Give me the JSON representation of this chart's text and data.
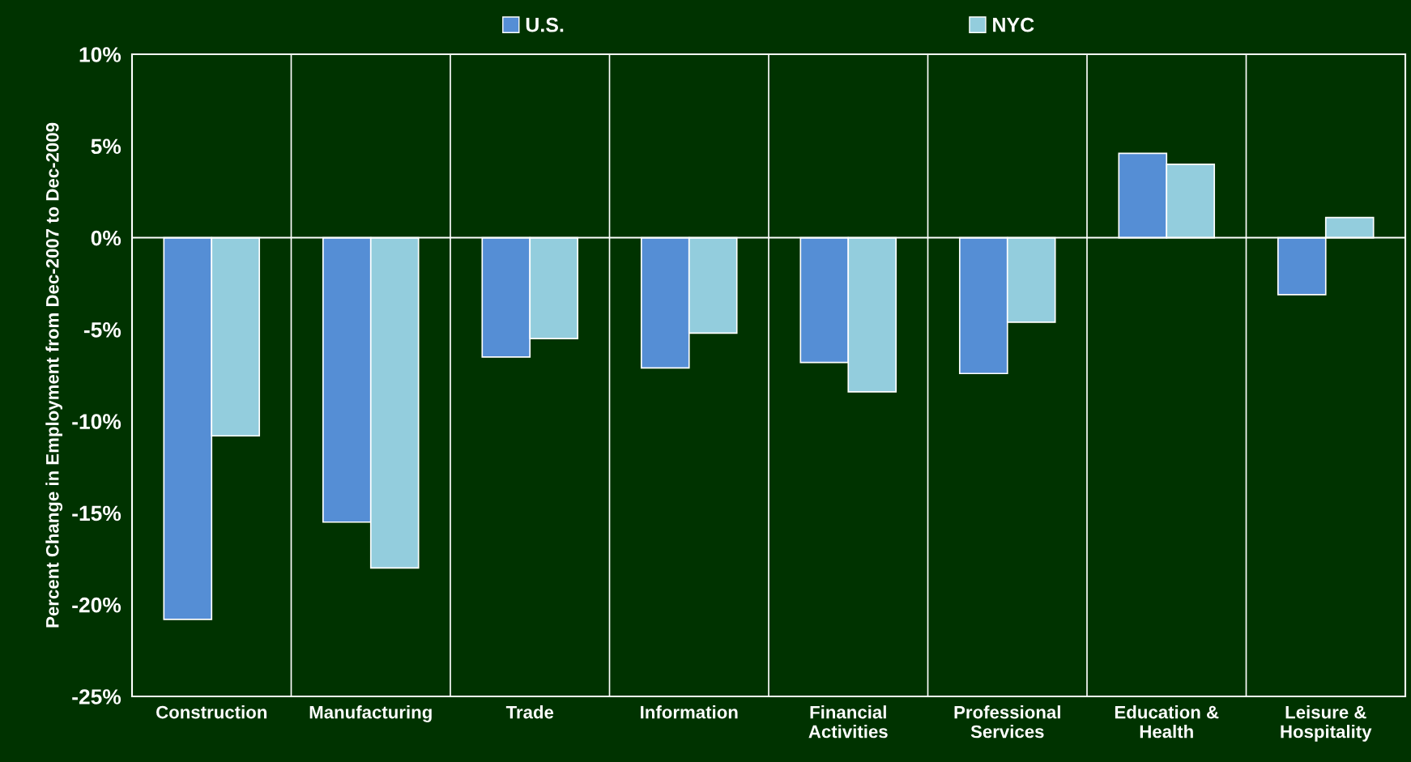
{
  "chart_data": {
    "type": "bar",
    "ylabel": "Percent Change in Employment from Dec-2007 to Dec-2009",
    "categories": [
      "Construction",
      "Manufacturing",
      "Trade",
      "Information",
      "Financial\nActivities",
      "Professional\nServices",
      "Education &\nHealth",
      "Leisure &\nHospitality"
    ],
    "series": [
      {
        "name": "U.S.",
        "color": "#558ed5",
        "values": [
          -20.8,
          -15.5,
          -6.5,
          -7.1,
          -6.8,
          -7.4,
          4.6,
          -3.1
        ]
      },
      {
        "name": "NYC",
        "color": "#93cddd",
        "values": [
          -10.8,
          -18.0,
          -5.5,
          -5.2,
          -8.4,
          -4.6,
          4.0,
          1.1
        ]
      }
    ],
    "ylim": [
      -25,
      10
    ],
    "yticks": [
      {
        "value": -25,
        "label": "-25%"
      },
      {
        "value": -20,
        "label": "-20%"
      },
      {
        "value": -15,
        "label": "-15%"
      },
      {
        "value": -10,
        "label": "-10%"
      },
      {
        "value": -5,
        "label": "-5%"
      },
      {
        "value": 0,
        "label": "0%"
      },
      {
        "value": 5,
        "label": "5%"
      },
      {
        "value": 10,
        "label": "10%"
      }
    ],
    "ref_lines": [
      {
        "axis": "y",
        "value": 0,
        "color": "#ffffff"
      }
    ],
    "grid": "x",
    "legend": "top"
  }
}
